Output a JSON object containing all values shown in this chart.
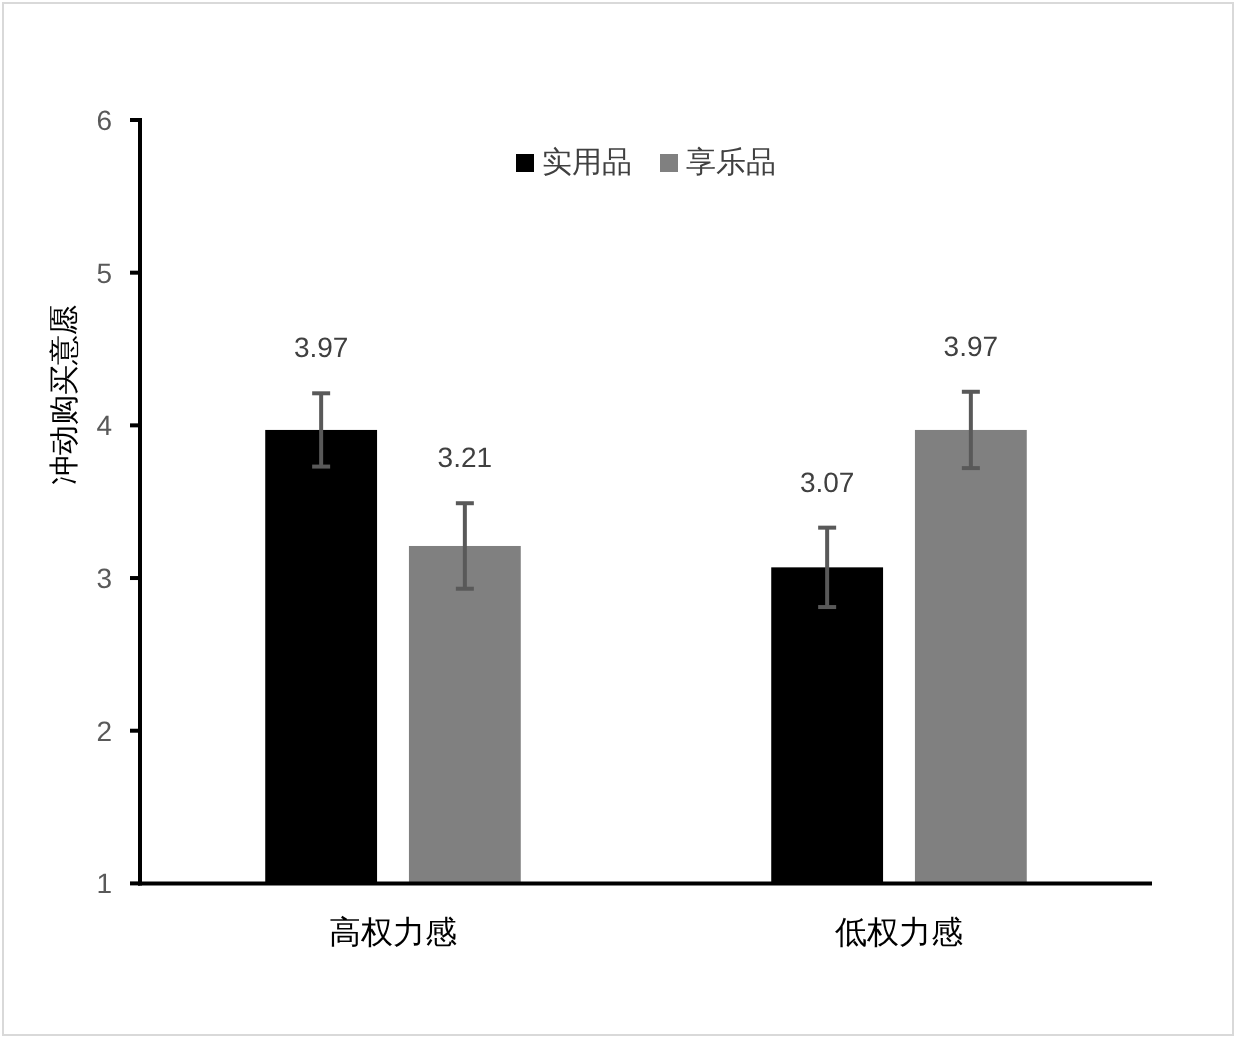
{
  "chart_data": {
    "type": "bar",
    "ylabel": "冲动购买意愿",
    "categories": [
      "高权力感",
      "低权力感"
    ],
    "series": [
      {
        "name": "实用品",
        "color": "#000000",
        "values": [
          3.97,
          3.07
        ],
        "errors": [
          0.24,
          0.26
        ]
      },
      {
        "name": "享乐品",
        "color": "#808080",
        "values": [
          3.21,
          3.97
        ],
        "errors": [
          0.28,
          0.25
        ]
      }
    ],
    "ylim": [
      1,
      6
    ],
    "yticks": [
      1,
      2,
      3,
      4,
      5,
      6
    ],
    "legend": "top",
    "data_labels": true
  }
}
